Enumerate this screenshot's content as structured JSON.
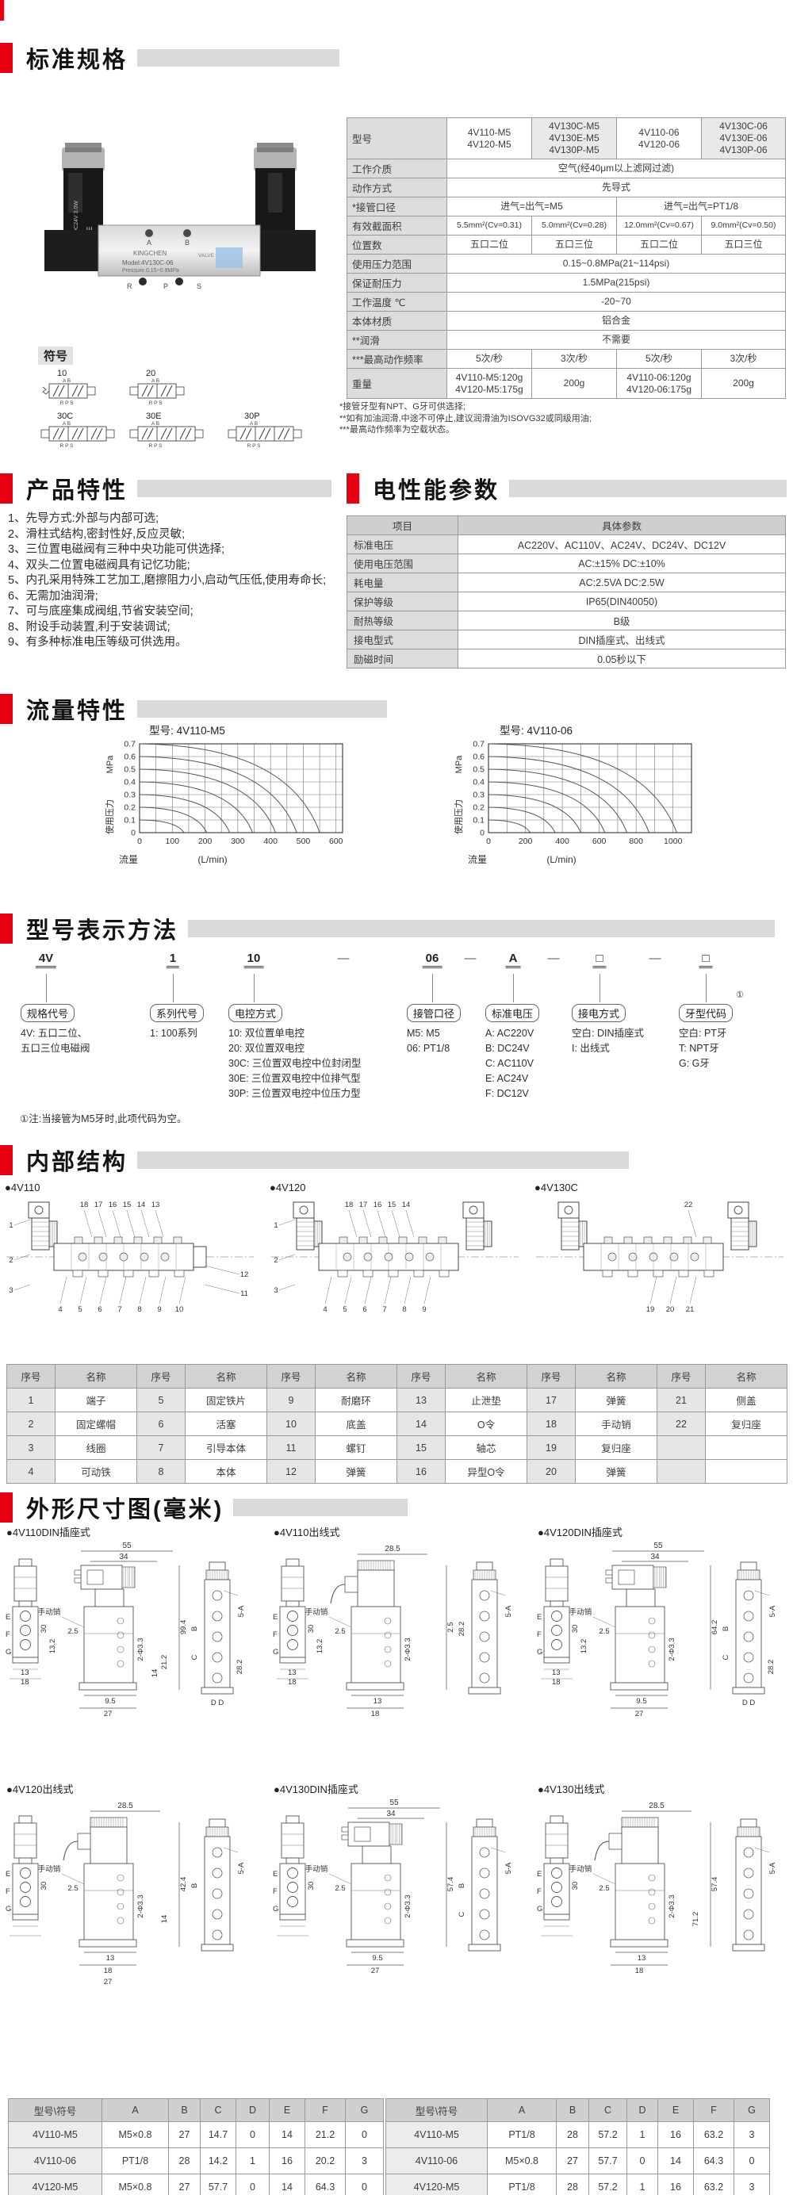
{
  "colors": {
    "accent_red": "#e60012",
    "bar_gray": "#d9d9d9",
    "cell_gray": "#dcdcdc",
    "header_gray": "#cfcfcf",
    "line": "#555555"
  },
  "sections": {
    "spec": {
      "title": "标准规格"
    },
    "features": {
      "title": "产品特性"
    },
    "electrical": {
      "title": "电性能参数"
    },
    "flow": {
      "title": "流量特性"
    },
    "model_code": {
      "title": "型号表示方法"
    },
    "internal": {
      "title": "内部结构"
    },
    "dimensions": {
      "title": "外形尺寸图(毫米)"
    }
  },
  "photo": {
    "brand": "KINGCHEN",
    "brand_sub": "VALVE",
    "model_line": "Model:4V130C-06",
    "pressure_line": "Pressure 0.15~0.8MPa",
    "port_a": "A",
    "port_b": "B",
    "port_r": "R",
    "port_p": "P",
    "port_s": "S",
    "side_text": "DC24V 3.0W",
    "ce_mark": "CE"
  },
  "symbols": {
    "heading": "符号",
    "items": [
      {
        "label": "10",
        "cells": 2,
        "spring": true
      },
      {
        "label": "20",
        "cells": 2,
        "spring": false
      },
      {
        "label": "30C",
        "cells": 3,
        "spring": false
      },
      {
        "label": "30E",
        "cells": 3,
        "spring": false
      },
      {
        "label": "30P",
        "cells": 3,
        "spring": false
      }
    ],
    "port_top": "A B",
    "port_bottom": "R P S"
  },
  "spec_table": {
    "rows": [
      {
        "label": "型号",
        "h": 52,
        "cells": [
          {
            "text": "4V110-M5\n4V120-M5"
          },
          {
            "text": "4V130C-M5\n4V130E-M5\n4V130P-M5",
            "shaded": true
          },
          {
            "text": "4V110-06\n4V120-06"
          },
          {
            "text": "4V130C-06\n4V130E-06\n4V130P-06",
            "shaded": true
          }
        ]
      },
      {
        "label": "工作介质",
        "cells": [
          {
            "text": "空气(经40μm以上滤网过滤)",
            "span": 4
          }
        ]
      },
      {
        "label": "动作方式",
        "cells": [
          {
            "text": "先导式",
            "span": 4
          }
        ]
      },
      {
        "label": "*接管口径",
        "cells": [
          {
            "text": "进气=出气=M5",
            "span": 2
          },
          {
            "text": "进气=出气=PT1/8",
            "span": 2
          }
        ]
      },
      {
        "label": "有效截面积",
        "small": true,
        "cells": [
          {
            "text": "5.5mm²(Cv=0.31)"
          },
          {
            "text": "5.0mm²(Cv=0.28)"
          },
          {
            "text": "12.0mm²(Cv=0.67)"
          },
          {
            "text": "9.0mm²(Cv=0.50)"
          }
        ]
      },
      {
        "label": "位置数",
        "cells": [
          {
            "text": "五口二位"
          },
          {
            "text": "五口三位"
          },
          {
            "text": "五口二位"
          },
          {
            "text": "五口三位"
          }
        ]
      },
      {
        "label": "使用压力范围",
        "cells": [
          {
            "text": "0.15~0.8MPa(21~114psi)",
            "span": 4
          }
        ]
      },
      {
        "label": "保证耐压力",
        "cells": [
          {
            "text": "1.5MPa(215psi)",
            "span": 4
          }
        ]
      },
      {
        "label": "工作温度 ℃",
        "cells": [
          {
            "text": "-20~70",
            "span": 4
          }
        ]
      },
      {
        "label": "本体材质",
        "cells": [
          {
            "text": "铝合金",
            "span": 4
          }
        ]
      },
      {
        "label": "**润滑",
        "cells": [
          {
            "text": "不需要",
            "span": 4
          }
        ]
      },
      {
        "label": "***最高动作频率",
        "cells": [
          {
            "text": "5次/秒"
          },
          {
            "text": "3次/秒"
          },
          {
            "text": "5次/秒"
          },
          {
            "text": "3次/秒"
          }
        ]
      },
      {
        "label": "重量",
        "h": 38,
        "cells": [
          {
            "text": "4V110-M5:120g\n4V120-M5:175g"
          },
          {
            "text": "200g"
          },
          {
            "text": "4V110-06:120g\n4V120-06:175g"
          },
          {
            "text": "200g"
          }
        ]
      }
    ],
    "footnotes": [
      "*接管牙型有NPT、G牙可供选择;",
      "**如有加油润滑,中途不可停止,建议润滑油为ISOVG32或同级用油;",
      "***最高动作频率为空载状态。"
    ]
  },
  "features_list": [
    "1、先导方式:外部与内部可选;",
    "2、滑柱式结构,密封性好,反应灵敏;",
    "3、三位置电磁阀有三种中央功能可供选择;",
    "4、双头二位置电磁阀具有记忆功能;",
    "5、内孔采用特殊工艺加工,磨擦阻力小,启动气压低,使用寿命长;",
    "6、无需加油润滑;",
    "7、可与底座集成阀组,节省安装空间;",
    "8、附设手动装置,利于安装调试;",
    "9、有多种标准电压等级可供选用。"
  ],
  "electrical_table": {
    "header": [
      "项目",
      "具体参数"
    ],
    "rows": [
      [
        "标准电压",
        "AC220V、AC110V、AC24V、DC24V、DC12V"
      ],
      [
        "使用电压范围",
        "AC:±15%    DC:±10%"
      ],
      [
        "耗电量",
        "AC:2.5VA    DC:2.5W"
      ],
      [
        "保护等级",
        "IP65(DIN40050)"
      ],
      [
        "耐热等级",
        "B级"
      ],
      [
        "接电型式",
        "DIN插座式、出线式"
      ],
      [
        "励磁时间",
        "0.05秒以下"
      ]
    ]
  },
  "chart_data": [
    {
      "type": "line",
      "title": "型号: 4V110-M5",
      "xlabel": "流量",
      "xlabel_unit": "(L/min)",
      "ylabel_top": "MPa",
      "ylabel": "使用压力",
      "xlim": [
        0,
        620
      ],
      "ylim": [
        0,
        0.7
      ],
      "grid_x_step": 50,
      "grid_y_step": 0.1,
      "xticks": [
        0,
        100,
        200,
        300,
        400,
        500,
        600
      ],
      "yticks": [
        0,
        0.1,
        0.2,
        0.3,
        0.4,
        0.5,
        0.6,
        0.7
      ],
      "legend_position": "none",
      "grid": true,
      "series": [
        {
          "name": "0.1MPa curve",
          "start_pressure": 0.1,
          "max_flow": 135
        },
        {
          "name": "0.2MPa curve",
          "start_pressure": 0.2,
          "max_flow": 205
        },
        {
          "name": "0.3MPa curve",
          "start_pressure": 0.3,
          "max_flow": 275
        },
        {
          "name": "0.4MPa curve",
          "start_pressure": 0.4,
          "max_flow": 345
        },
        {
          "name": "0.5MPa curve",
          "start_pressure": 0.5,
          "max_flow": 415
        },
        {
          "name": "0.6MPa curve",
          "start_pressure": 0.6,
          "max_flow": 480
        },
        {
          "name": "0.7MPa curve",
          "start_pressure": 0.7,
          "max_flow": 550
        }
      ]
    },
    {
      "type": "line",
      "title": "型号: 4V110-06",
      "xlabel": "流量",
      "xlabel_unit": "(L/min)",
      "ylabel_top": "MPa",
      "ylabel": "使用压力",
      "xlim": [
        0,
        1100
      ],
      "ylim": [
        0,
        0.7
      ],
      "grid_x_step": 100,
      "grid_y_step": 0.1,
      "xticks": [
        0,
        200,
        400,
        600,
        800,
        1000
      ],
      "yticks": [
        0,
        0.1,
        0.2,
        0.3,
        0.4,
        0.5,
        0.6,
        0.7
      ],
      "legend_position": "none",
      "grid": true,
      "series": [
        {
          "name": "0.1MPa curve",
          "start_pressure": 0.1,
          "max_flow": 225
        },
        {
          "name": "0.2MPa curve",
          "start_pressure": 0.2,
          "max_flow": 360
        },
        {
          "name": "0.3MPa curve",
          "start_pressure": 0.3,
          "max_flow": 500
        },
        {
          "name": "0.4MPa curve",
          "start_pressure": 0.4,
          "max_flow": 630
        },
        {
          "name": "0.5MPa curve",
          "start_pressure": 0.5,
          "max_flow": 750
        },
        {
          "name": "0.6MPa curve",
          "start_pressure": 0.6,
          "max_flow": 870
        },
        {
          "name": "0.7MPa curve",
          "start_pressure": 0.7,
          "max_flow": 1020
        }
      ]
    }
  ],
  "model_code": {
    "groups": [
      {
        "code": "4V",
        "label": "规格代号",
        "desc": [
          "4V: 五口二位、",
          "五口三位电磁阀"
        ]
      },
      {
        "code": "1",
        "label": "系列代号",
        "desc": [
          "1: 100系列"
        ]
      },
      {
        "code": "10",
        "label": "电控方式",
        "desc": [
          "10: 双位置单电控",
          "20: 双位置双电控",
          "30C: 三位置双电控中位封闭型",
          "30E: 三位置双电控中位排气型",
          "30P: 三位置双电控中位压力型"
        ]
      },
      {
        "code": "06",
        "label": "接管口径",
        "desc": [
          "M5: M5",
          "06: PT1/8"
        ]
      },
      {
        "code": "A",
        "label": "标准电压",
        "desc": [
          "A: AC220V",
          "B: DC24V",
          "C: AC110V",
          "E: AC24V",
          "F: DC12V"
        ]
      },
      {
        "code": "□",
        "label": "接电方式",
        "desc": [
          "空白: DIN插座式",
          "I: 出线式"
        ]
      },
      {
        "code": "□",
        "label": "牙型代码",
        "sup": "①",
        "desc": [
          "空白: PT牙",
          "T: NPT牙",
          "G: G牙"
        ]
      }
    ],
    "dash": "—",
    "note": "①注:当接管为M5牙时,此项代码为空。"
  },
  "internal": {
    "diagrams": [
      {
        "label": "●4V110",
        "dual_coil": false,
        "top_callouts": [
          "18",
          "17",
          "16",
          "15",
          "14",
          "13"
        ],
        "left_callouts": [
          "1",
          "2",
          "3"
        ],
        "bottom_callouts": [
          "4",
          "5",
          "6",
          "7",
          "8",
          "9",
          "10"
        ],
        "right_callouts": [
          "12",
          "11"
        ]
      },
      {
        "label": "●4V120",
        "dual_coil": true,
        "top_callouts": [
          "18",
          "17",
          "16",
          "15",
          "14"
        ],
        "left_callouts": [
          "1",
          "2",
          "3"
        ],
        "bottom_callouts": [
          "4",
          "5",
          "6",
          "7",
          "8",
          "9"
        ],
        "right_callouts": []
      },
      {
        "label": "●4V130C",
        "dual_coil": true,
        "top_callouts": [
          "22"
        ],
        "left_callouts": [],
        "bottom_callouts": [
          "19",
          "20",
          "21"
        ],
        "right_callouts": []
      }
    ],
    "parts_table": {
      "header_no": "序号",
      "header_name": "名称",
      "rows": [
        [
          [
            "1",
            "端子"
          ],
          [
            "5",
            "固定铁片"
          ],
          [
            "9",
            "耐磨环"
          ],
          [
            "13",
            "止泄垫"
          ],
          [
            "17",
            "弹簧"
          ],
          [
            "21",
            "侧盖"
          ]
        ],
        [
          [
            "2",
            "固定螺帽"
          ],
          [
            "6",
            "活塞"
          ],
          [
            "10",
            "底盖"
          ],
          [
            "14",
            "O令"
          ],
          [
            "18",
            "手动销"
          ],
          [
            "22",
            "复归座"
          ]
        ],
        [
          [
            "3",
            "线圈"
          ],
          [
            "7",
            "引导本体"
          ],
          [
            "11",
            "螺钉"
          ],
          [
            "15",
            "轴芯"
          ],
          [
            "19",
            "复归座"
          ],
          [
            "",
            ""
          ]
        ],
        [
          [
            "4",
            "可动铁"
          ],
          [
            "8",
            "本体"
          ],
          [
            "12",
            "弹簧"
          ],
          [
            "16",
            "异型O令"
          ],
          [
            "20",
            "弹簧"
          ],
          [
            "",
            ""
          ]
        ]
      ]
    }
  },
  "dim_panels": [
    {
      "title": "●4V110DIN插座式",
      "style": "din",
      "top_dims": [
        "55",
        "34"
      ],
      "v_dims": [
        "99.4",
        "21.2",
        "14"
      ],
      "annots": [
        "手动销",
        "2.5",
        "2-Φ3.3"
      ],
      "left_dims": [
        "E",
        "F",
        "G",
        "13",
        "18"
      ],
      "mid_dims": [
        "30",
        "13.2"
      ],
      "bottom_dims": [
        "9.5",
        "27"
      ],
      "side_dims": [
        "5-A",
        "B",
        "C",
        "D D",
        "28.2"
      ]
    },
    {
      "title": "●4V110出线式",
      "style": "cable",
      "top_dims": [
        "28.5"
      ],
      "v_dims": [
        "2.5"
      ],
      "annots": [
        "手动销",
        "2.5",
        "2-Φ3.3"
      ],
      "left_dims": [
        "E",
        "F",
        "G",
        "13",
        "18"
      ],
      "mid_dims": [
        "30",
        "13.2"
      ],
      "bottom_dims": [
        "13",
        "18"
      ],
      "side_dims": [
        "5-A",
        "28.2"
      ]
    },
    {
      "title": "●4V120DIN插座式",
      "style": "din",
      "top_dims": [
        "55",
        "34"
      ],
      "v_dims": [
        "64.2"
      ],
      "annots": [
        "手动销",
        "2.5",
        "2-Φ3.3"
      ],
      "left_dims": [
        "E",
        "F",
        "G",
        "13",
        "18"
      ],
      "mid_dims": [
        "30",
        "13.2"
      ],
      "bottom_dims": [
        "9.5",
        "27"
      ],
      "side_dims": [
        "5-A",
        "B",
        "C",
        "D D",
        "28.2"
      ]
    },
    {
      "title": "●4V120出线式",
      "style": "cable",
      "top_dims": [
        "28.5"
      ],
      "v_dims": [
        "42.4",
        "14"
      ],
      "annots": [
        "手动销",
        "2.5",
        "2-Φ3.3"
      ],
      "left_dims": [
        "E",
        "F",
        "G"
      ],
      "mid_dims": [
        "30"
      ],
      "bottom_dims": [
        "13",
        "18",
        "27"
      ],
      "side_dims": [
        "5-A",
        "B"
      ]
    },
    {
      "title": "●4V130DIN插座式",
      "style": "din",
      "top_dims": [
        "55",
        "34"
      ],
      "v_dims": [
        "57.4"
      ],
      "annots": [
        "手动销",
        "2.5",
        "2-Φ3.3"
      ],
      "left_dims": [
        "E",
        "F",
        "G"
      ],
      "mid_dims": [
        "30"
      ],
      "bottom_dims": [
        "9.5",
        "27"
      ],
      "side_dims": [
        "5-A",
        "B",
        "C"
      ]
    },
    {
      "title": "●4V130出线式",
      "style": "cable",
      "top_dims": [
        "28.5"
      ],
      "v_dims": [
        "57.4",
        "71.2"
      ],
      "annots": [
        "手动销",
        "2.5",
        "2-Φ3.3"
      ],
      "left_dims": [
        "E",
        "F",
        "G"
      ],
      "mid_dims": [
        "30"
      ],
      "bottom_dims": [
        "13",
        "18"
      ],
      "side_dims": [
        "5-A"
      ]
    }
  ],
  "dim_tables": {
    "header": [
      "型号\\符号",
      "A",
      "B",
      "C",
      "D",
      "E",
      "F",
      "G"
    ],
    "left_rows": [
      [
        "4V110-M5",
        "M5×0.8",
        "27",
        "14.7",
        "0",
        "14",
        "21.2",
        "0"
      ],
      [
        "4V110-06",
        "PT1/8",
        "28",
        "14.2",
        "1",
        "16",
        "20.2",
        "3"
      ],
      [
        "4V120-M5",
        "M5×0.8",
        "27",
        "57.7",
        "0",
        "14",
        "64.3",
        "0"
      ]
    ],
    "right_rows": [
      [
        "4V110-M5",
        "PT1/8",
        "28",
        "57.2",
        "1",
        "16",
        "63.2",
        "3"
      ],
      [
        "4V110-06",
        "M5×0.8",
        "27",
        "57.7",
        "0",
        "14",
        "64.3",
        "0"
      ],
      [
        "4V120-M5",
        "PT1/8",
        "28",
        "57.2",
        "1",
        "16",
        "63.2",
        "3"
      ]
    ]
  }
}
